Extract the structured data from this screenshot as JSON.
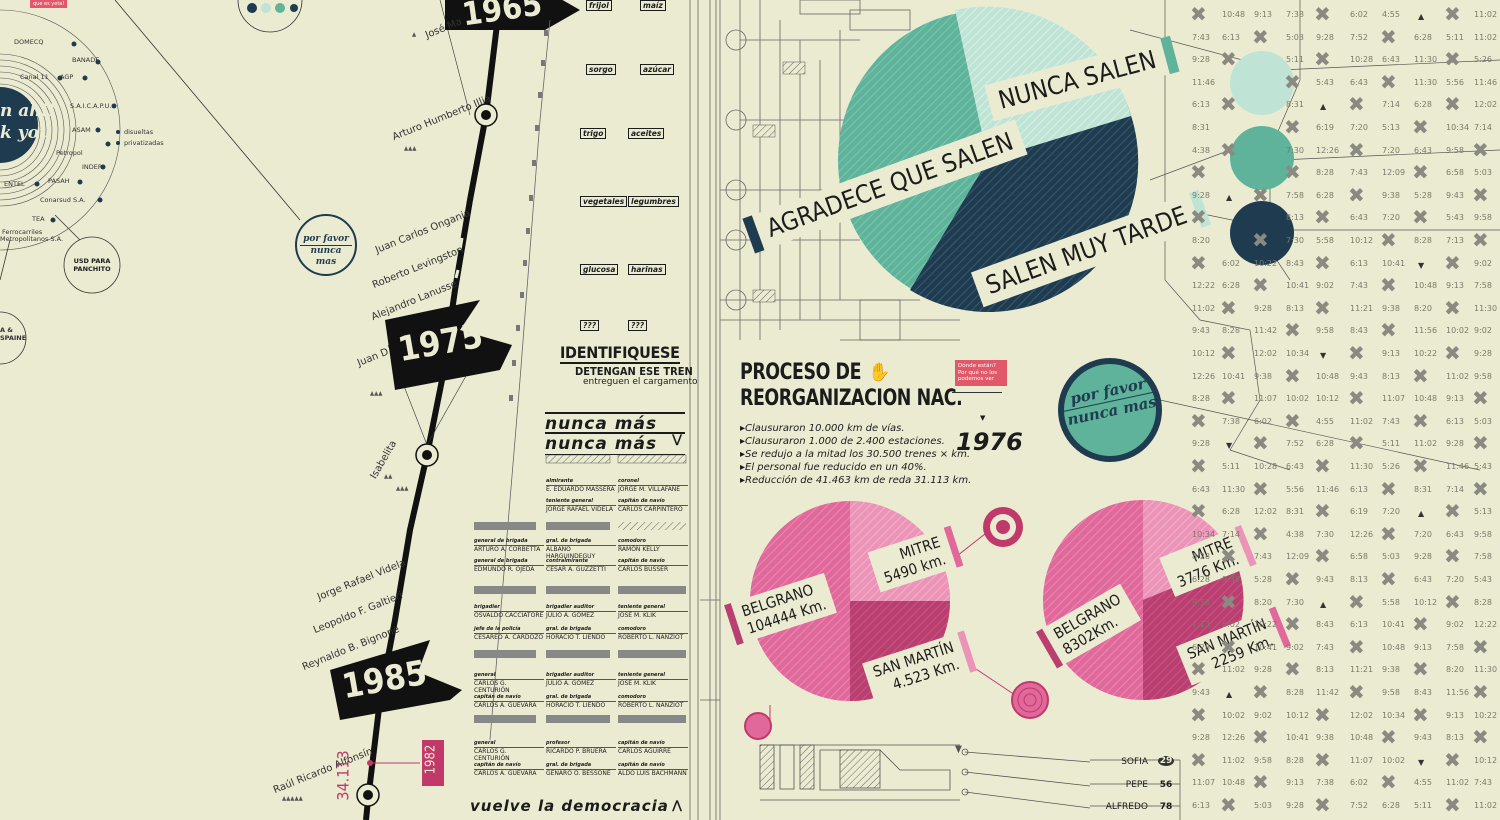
{
  "quote_bubble": "que es yeta!",
  "left_circle": {
    "companies": [
      "DOMECQ",
      "BANADE",
      "AGP",
      "Canal 11",
      "S.A.I.C.A.P.U.",
      "ASAM",
      "Petropol",
      "INDER",
      "PASAH",
      "ENTEL",
      "Conarsud S.A.",
      "TEA",
      "Ferrocarriles",
      "Metropolitanos S.A."
    ],
    "legend": [
      "disueltas",
      "privatizadas"
    ],
    "center_text": [
      "n ahi!",
      "k you"
    ],
    "bottom_left": [
      "A &",
      "SPAINE"
    ]
  },
  "badges": {
    "por_favor": "por favor",
    "nunca_mas": "nunca mas",
    "usd": "USD PARA PANCHITO"
  },
  "timeline": {
    "flags": [
      "1965",
      "1975",
      "1985"
    ],
    "presidents": [
      "José Ma",
      "Arturo Humberto Illia",
      "Juan Carlos Ongania",
      "Roberto Levingston",
      "Alejandro Lanusse",
      "Juan D",
      "Isabelita",
      "Jorge Rafael Videla",
      "Leopoldo F. Galtieri",
      "Reynaldo B. Bignone",
      "Raúl Ricardo Alfonsín"
    ],
    "number_label": "34.113",
    "year_tag": "1982"
  },
  "food_chips": [
    [
      "frijol",
      "maíz"
    ],
    [
      "sorgo",
      "azúcar"
    ],
    [
      "trigo",
      "aceites"
    ],
    [
      "vegetales",
      "legumbres"
    ],
    [
      "glucosa",
      "harinas"
    ],
    [
      "???",
      "???"
    ]
  ],
  "identifiquese": {
    "title": "IDENTIFIQUESE",
    "line1": "DETENGAN ESE TREN",
    "line2": "entreguen el cargamento",
    "nunca1": "nunca más",
    "nunca2": "nunca más",
    "vuelve": "vuelve la democracia"
  },
  "junta": [
    {
      "rank": "almirante",
      "name": "E. EDUARDO MASSERA"
    },
    {
      "rank": "coronel",
      "name": "JORGE M. VILLAFAÑE"
    },
    {
      "rank": "teniente general",
      "name": "JORGE RAFAEL VIDELA"
    },
    {
      "rank": "capitán de navío",
      "name": "CARLOS CARPINTERO"
    },
    {
      "rank": "general de brigada",
      "name": "ARTURO A. CORBETTA"
    },
    {
      "rank": "gral. de brigada",
      "name": "ALBANO HARGUINDEGUY"
    },
    {
      "rank": "comodoro",
      "name": "RAMÓN KELLY"
    },
    {
      "rank": "general de brigada",
      "name": "EDMUNDO R. OJEDA"
    },
    {
      "rank": "contralmirante",
      "name": "CESAR A. GUZZETTI"
    },
    {
      "rank": "capitán de navío",
      "name": "CARLOS BUSSER"
    },
    {
      "rank": "brigadier",
      "name": "OSVALDO CACCIATORE"
    },
    {
      "rank": "brigadier auditor",
      "name": "JULIO A. GÓMEZ"
    },
    {
      "rank": "teniente general",
      "name": "JOSÉ M. KLIK"
    },
    {
      "rank": "jefe de la policía",
      "name": "CESÁREO A. CARDOZO"
    },
    {
      "rank": "gral. de brigada",
      "name": "HORACIO T. LIENDO"
    },
    {
      "rank": "comodoro",
      "name": "ROBERTO L. NANZIOT"
    },
    {
      "rank": "general",
      "name": "CARLOS G. CENTURIÓN"
    },
    {
      "rank": "brigadier auditor",
      "name": "JULIO A. GÓMEZ"
    },
    {
      "rank": "teniente general",
      "name": "JOSÉ M. KLIK"
    },
    {
      "rank": "capitán de navío",
      "name": "CARLOS A. GUEVARA"
    },
    {
      "rank": "gral. de brigada",
      "name": "HORACIO T. LIENDO"
    },
    {
      "rank": "comodoro",
      "name": "ROBERTO L. NANZIOT"
    },
    {
      "rank": "general",
      "name": "CARLOS G. CENTURIÓN"
    },
    {
      "rank": "profesor",
      "name": "RICARDO P. BRUERA"
    },
    {
      "rank": "capitán de navío",
      "name": "CARLOS AGUIRRE"
    },
    {
      "rank": "capitán de navío",
      "name": "CARLOS A. GUEVARA"
    },
    {
      "rank": "gral. de brigada",
      "name": "GENARO O. BESSONE"
    },
    {
      "rank": "capitán de navío",
      "name": "ALDO LUIS BACHMANN"
    }
  ],
  "top_pie": {
    "labels": [
      "NUNCA SALEN",
      "AGRADECE QUE SALEN",
      "SALEN MUY TARDE"
    ],
    "colors": [
      "#bfe4d6",
      "#5fb39a",
      "#1f3b4f"
    ]
  },
  "section": {
    "title_l1": "PROCESO DE",
    "title_l2": "REORGANIZACION NAC.",
    "year": "1976",
    "bubble": "Dónde están? Por qué no los podemos ver",
    "facts": [
      "Clausuraron 10.000 km de vías.",
      "Clausuraron 1.000 de 2.400 estaciones.",
      "Se redujo a la mitad los 30.500 trenes × km.",
      "El personal fue reducido en un 40%.",
      "Reducción de 41.463 km de reda 31.113 km."
    ]
  },
  "pies": [
    {
      "mitre": "MITRE",
      "mitre_km": "5490 km.",
      "belgrano": "BELGRANO",
      "belgrano_km": "104444 Km.",
      "sanmartin": "SAN MARTÍN",
      "sanmartin_km": "4.523 Km."
    },
    {
      "mitre": "MITRE",
      "mitre_km": "3776 Km.",
      "belgrano": "BELGRANO",
      "belgrano_km": "8302Km.",
      "sanmartin": "SAN MARTÍN",
      "sanmartin_km": "2259 Km."
    }
  ],
  "riders": [
    {
      "name": "SOFIA",
      "num": "29"
    },
    {
      "name": "PEPE",
      "num": "56"
    },
    {
      "name": "ALFREDO",
      "num": "78"
    }
  ],
  "schedule_times": [
    "10:48",
    "9:13",
    "7:38",
    "6:02",
    "4:55",
    "11:02",
    "7:43",
    "6:13",
    "5:03",
    "9:28",
    "7:52",
    "6:28",
    "5:11",
    "11:02",
    "9:28",
    "5:11",
    "10:28",
    "6:43",
    "11:30",
    "5:26",
    "11:46",
    "5:43",
    "6:43",
    "11:30",
    "5:56",
    "11:46",
    "6:13",
    "8:31",
    "7:14",
    "6:28",
    "12:02",
    "8:31",
    "6:19",
    "7:20",
    "5:13",
    "10:34",
    "7:14",
    "4:38",
    "7:30",
    "12:26",
    "7:20",
    "6:43",
    "9:58",
    "8:28",
    "7:43",
    "12:09",
    "6:58",
    "5:03",
    "9:28",
    "7:58",
    "6:28",
    "9:38",
    "5:28",
    "9:43",
    "8:13",
    "6:43",
    "7:20",
    "5:43",
    "9:58",
    "8:20",
    "7:30",
    "5:58",
    "10:12",
    "8:28",
    "7:13",
    "6:02",
    "10:22",
    "8:43",
    "6:13",
    "10:41",
    "9:02",
    "12:22",
    "6:28",
    "10:41",
    "9:02",
    "7:43",
    "10:48",
    "9:13",
    "7:58",
    "11:02",
    "9:28",
    "8:13",
    "11:21",
    "9:38",
    "8:20",
    "11:30",
    "9:43",
    "8:28",
    "11:42",
    "9:58",
    "8:43",
    "11:56",
    "10:02",
    "9:02",
    "10:12",
    "12:02",
    "10:34",
    "9:13",
    "10:22",
    "9:28",
    "12:26",
    "10:41",
    "9:38",
    "10:48",
    "9:43",
    "8:13",
    "11:02",
    "9:58",
    "8:28",
    "11:07",
    "10:02",
    "10:12",
    "11:07"
  ]
}
